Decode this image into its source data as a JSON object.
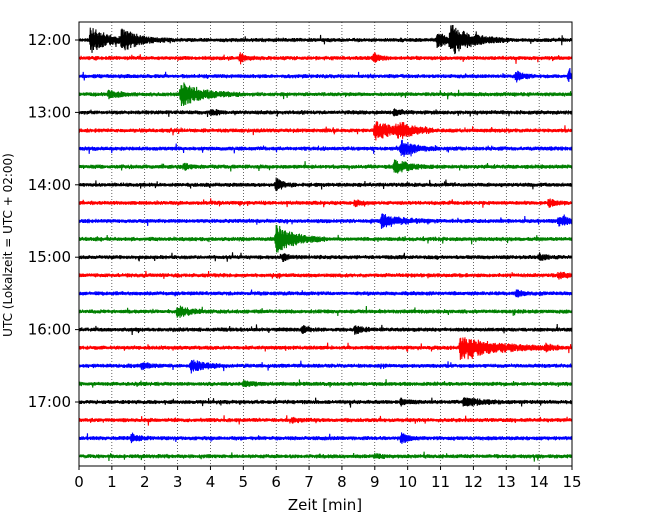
{
  "chart_data": {
    "type": "line",
    "subtype": "helicorder",
    "xlabel": "Zeit  [min]",
    "ylabel": "UTC (Lokalzeit = UTC + 02:00)",
    "xlim": [
      0,
      15
    ],
    "x_ticks": [
      0,
      1,
      2,
      3,
      4,
      5,
      6,
      7,
      8,
      9,
      10,
      11,
      12,
      13,
      14,
      15
    ],
    "x_tick_labels": [
      "0",
      "1",
      "2",
      "3",
      "4",
      "5",
      "6",
      "7",
      "8",
      "9",
      "10",
      "11",
      "12",
      "13",
      "14",
      "15"
    ],
    "y_tick_labels": [
      "12:00",
      "13:00",
      "14:00",
      "15:00",
      "16:00",
      "17:00"
    ],
    "x_grid": true,
    "trace_colors": [
      "#000000",
      "#ff0000",
      "#0000ff",
      "#008000"
    ],
    "traces": [
      {
        "row": 0,
        "color": "#000000",
        "events": [
          {
            "t": 0.35,
            "amp": 12,
            "dur": 0.5
          },
          {
            "t": 1.3,
            "amp": 10,
            "dur": 0.5
          },
          {
            "t": 10.9,
            "amp": 8,
            "dur": 0.3
          },
          {
            "t": 11.3,
            "amp": 14,
            "dur": 0.6
          }
        ]
      },
      {
        "row": 1,
        "color": "#ff0000",
        "events": [
          {
            "t": 4.9,
            "amp": 5,
            "dur": 0.15
          },
          {
            "t": 8.95,
            "amp": 6,
            "dur": 0.15
          }
        ]
      },
      {
        "row": 2,
        "color": "#0000ff",
        "events": [
          {
            "t": 13.3,
            "amp": 5,
            "dur": 0.2
          },
          {
            "t": 14.9,
            "amp": 5,
            "dur": 0.2
          }
        ]
      },
      {
        "row": 3,
        "color": "#008000",
        "events": [
          {
            "t": 0.9,
            "amp": 4,
            "dur": 0.3
          },
          {
            "t": 3.1,
            "amp": 12,
            "dur": 0.6
          }
        ]
      },
      {
        "row": 4,
        "color": "#000000",
        "events": [
          {
            "t": 4.0,
            "amp": 3,
            "dur": 0.2
          },
          {
            "t": 9.6,
            "amp": 3,
            "dur": 0.2
          }
        ]
      },
      {
        "row": 5,
        "color": "#ff0000",
        "events": [
          {
            "t": 9.0,
            "amp": 9,
            "dur": 0.6
          },
          {
            "t": 9.7,
            "amp": 7,
            "dur": 0.4
          }
        ]
      },
      {
        "row": 6,
        "color": "#0000ff",
        "events": [
          {
            "t": 9.8,
            "amp": 8,
            "dur": 0.4
          }
        ]
      },
      {
        "row": 7,
        "color": "#008000",
        "events": [
          {
            "t": 9.6,
            "amp": 7,
            "dur": 0.4
          },
          {
            "t": 3.2,
            "amp": 3,
            "dur": 0.2
          }
        ]
      },
      {
        "row": 8,
        "color": "#000000",
        "events": [
          {
            "t": 6.0,
            "amp": 6,
            "dur": 0.2
          }
        ]
      },
      {
        "row": 9,
        "color": "#ff0000",
        "events": [
          {
            "t": 8.4,
            "amp": 3,
            "dur": 0.2
          },
          {
            "t": 14.3,
            "amp": 4,
            "dur": 0.2
          }
        ]
      },
      {
        "row": 10,
        "color": "#0000ff",
        "events": [
          {
            "t": 9.2,
            "amp": 6,
            "dur": 0.6
          },
          {
            "t": 14.6,
            "amp": 5,
            "dur": 0.3
          }
        ]
      },
      {
        "row": 11,
        "color": "#008000",
        "events": [
          {
            "t": 6.0,
            "amp": 14,
            "dur": 0.5
          }
        ]
      },
      {
        "row": 12,
        "color": "#000000",
        "events": [
          {
            "t": 6.2,
            "amp": 3,
            "dur": 0.2
          },
          {
            "t": 14.0,
            "amp": 3,
            "dur": 0.2
          }
        ]
      },
      {
        "row": 13,
        "color": "#ff0000",
        "events": [
          {
            "t": 14.6,
            "amp": 3,
            "dur": 0.2
          }
        ]
      },
      {
        "row": 14,
        "color": "#0000ff",
        "events": [
          {
            "t": 13.3,
            "amp": 3,
            "dur": 0.2
          }
        ]
      },
      {
        "row": 15,
        "color": "#008000",
        "events": [
          {
            "t": 3.0,
            "amp": 6,
            "dur": 0.3
          }
        ]
      },
      {
        "row": 16,
        "color": "#000000",
        "events": [
          {
            "t": 8.4,
            "amp": 4,
            "dur": 0.2
          },
          {
            "t": 6.8,
            "amp": 3,
            "dur": 0.2
          }
        ]
      },
      {
        "row": 17,
        "color": "#ff0000",
        "events": [
          {
            "t": 11.6,
            "amp": 11,
            "dur": 1.0
          },
          {
            "t": 14.2,
            "amp": 3,
            "dur": 0.2
          }
        ]
      },
      {
        "row": 18,
        "color": "#0000ff",
        "events": [
          {
            "t": 3.4,
            "amp": 6,
            "dur": 0.4
          },
          {
            "t": 1.9,
            "amp": 3,
            "dur": 0.2
          }
        ]
      },
      {
        "row": 19,
        "color": "#008000",
        "events": [
          {
            "t": 5.0,
            "amp": 3,
            "dur": 0.2
          }
        ]
      },
      {
        "row": 20,
        "color": "#000000",
        "events": [
          {
            "t": 11.7,
            "amp": 4,
            "dur": 0.5
          },
          {
            "t": 9.8,
            "amp": 3,
            "dur": 0.2
          }
        ]
      },
      {
        "row": 21,
        "color": "#ff0000",
        "events": [
          {
            "t": 6.5,
            "amp": 2,
            "dur": 0.2
          }
        ]
      },
      {
        "row": 22,
        "color": "#0000ff",
        "events": [
          {
            "t": 1.6,
            "amp": 4,
            "dur": 0.2
          },
          {
            "t": 9.8,
            "amp": 5,
            "dur": 0.2
          }
        ]
      },
      {
        "row": 23,
        "color": "#008000",
        "events": [
          {
            "t": 9.0,
            "amp": 2,
            "dur": 0.2
          }
        ]
      }
    ]
  }
}
